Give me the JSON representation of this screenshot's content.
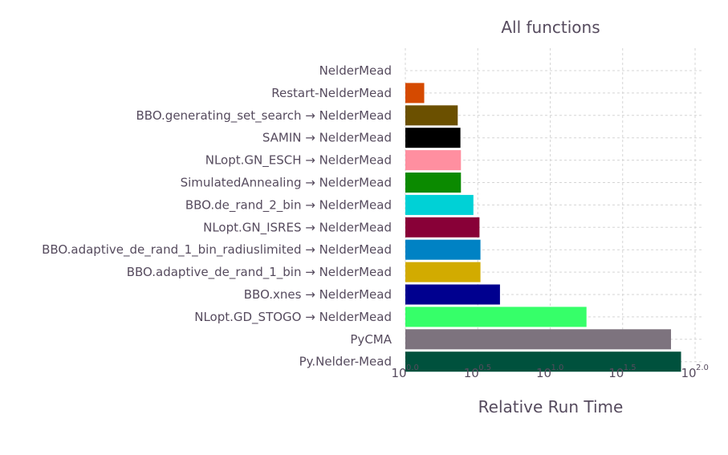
{
  "chart_data": {
    "type": "bar",
    "orientation": "horizontal",
    "title": "All functions",
    "xlabel": "Relative Run Time",
    "ylabel": "",
    "x_scale": "log10",
    "xlim": [
      1,
      100
    ],
    "x_tick_values": [
      1,
      3.162,
      10,
      31.62,
      100
    ],
    "x_tick_labels": [
      {
        "base": "10",
        "exp": "0.0"
      },
      {
        "base": "10",
        "exp": "0.5"
      },
      {
        "base": "10",
        "exp": "1.0"
      },
      {
        "base": "10",
        "exp": "1.5"
      },
      {
        "base": "10",
        "exp": "2.0"
      }
    ],
    "grid": true,
    "categories": [
      "NelderMead",
      "Restart-NelderMead",
      "BBO.generating_set_search → NelderMead",
      "SAMIN → NelderMead",
      "NLopt.GN_ESCH → NelderMead",
      "SimulatedAnnealing → NelderMead",
      "BBO.de_rand_2_bin → NelderMead",
      "NLopt.GN_ISRES → NelderMead",
      "BBO.adaptive_de_rand_1_bin_radiuslimited → NelderMead",
      "BBO.adaptive_de_rand_1_bin → NelderMead",
      "BBO.xnes → NelderMead",
      "NLopt.GD_STOGO → NelderMead",
      "PyCMA",
      "Py.Nelder-Mead"
    ],
    "values": [
      1.0,
      1.35,
      2.3,
      2.4,
      2.42,
      2.42,
      2.95,
      3.25,
      3.3,
      3.3,
      4.5,
      17.8,
      68.2,
      80.0
    ],
    "colors": [
      "#ffffff",
      "#d54a00",
      "#6b5000",
      "#000000",
      "#ff8fa0",
      "#0b8a00",
      "#00d1d6",
      "#880037",
      "#0082c4",
      "#d2ab00",
      "#00008f",
      "#36ff69",
      "#7d737e",
      "#00513d"
    ]
  }
}
